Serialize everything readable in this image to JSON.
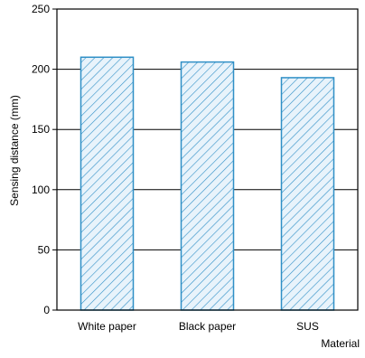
{
  "chart_data": {
    "type": "bar",
    "categories": [
      "White paper",
      "Black paper",
      "SUS"
    ],
    "values": [
      210,
      206,
      193
    ],
    "xlabel": "Material",
    "ylabel": "Sensing distance (mm)",
    "ylim": [
      0,
      250
    ],
    "yticks": [
      0,
      50,
      100,
      150,
      200,
      250
    ],
    "grid": true,
    "bar_color": "#2f8fc6",
    "bar_fill": "#e8f3fb",
    "pattern": "diagonal-hatch"
  }
}
